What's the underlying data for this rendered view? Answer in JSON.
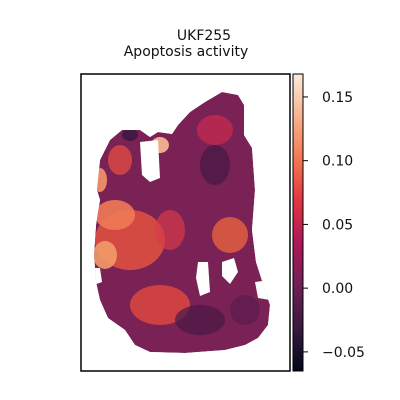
{
  "chart_data": {
    "type": "heatmap",
    "title_line1": "UKF255",
    "title_line2": "Apoptosis activity",
    "colormap": "rocket",
    "colorbar": {
      "vmin": -0.065,
      "vmax": 0.168,
      "ticks": [
        {
          "value": 0.15,
          "label": "0.15"
        },
        {
          "value": 0.1,
          "label": "0.10"
        },
        {
          "value": 0.05,
          "label": "0.05"
        },
        {
          "value": 0.0,
          "label": "0.00"
        },
        {
          "value": -0.05,
          "label": "−0.05"
        }
      ],
      "stops": [
        "#03051a",
        "#35193e",
        "#701f57",
        "#ad1759",
        "#e13342",
        "#f37651",
        "#f6b48f",
        "#faebdd"
      ]
    },
    "grid": false,
    "frame_color": "#000000"
  }
}
